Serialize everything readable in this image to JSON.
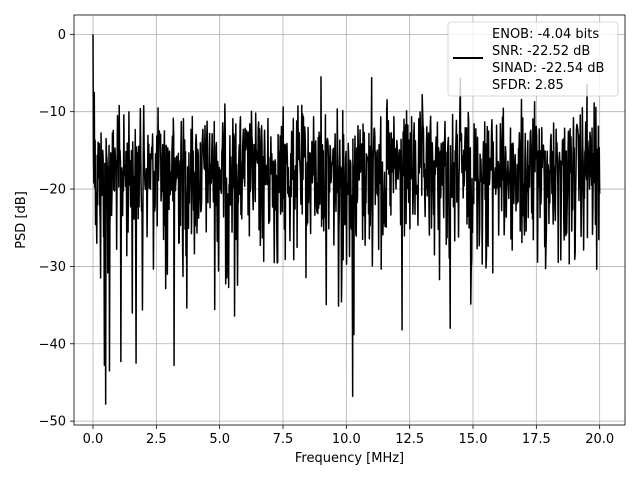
{
  "chart_data": {
    "type": "line",
    "title": "",
    "xlabel": "Frequency [MHz]",
    "ylabel": "PSD [dB]",
    "xlim": [
      -0.75,
      21.0
    ],
    "ylim": [
      -50.5,
      2.5
    ],
    "xticks": [
      0.0,
      2.5,
      5.0,
      7.5,
      10.0,
      12.5,
      15.0,
      17.5,
      20.0
    ],
    "xtick_labels": [
      "0.0",
      "2.5",
      "5.0",
      "7.5",
      "10.0",
      "12.5",
      "15.0",
      "17.5",
      "20.0"
    ],
    "yticks": [
      0,
      -10,
      -20,
      -30,
      -40,
      -50
    ],
    "ytick_labels": [
      "0",
      "−10",
      "−20",
      "−30",
      "−40",
      "−50"
    ],
    "grid": true,
    "legend_placement": "top-right",
    "series": [
      {
        "name": "ENOB: -4.04 bits\nSNR: -22.52 dB\nSINAD: -22.54 dB\nSFDR: 2.85",
        "color": "#000000",
        "x_start": 0.0,
        "x_end": 20.0,
        "points": 1200,
        "noise_mean_db": -18.5,
        "noise_peak_db": -5,
        "peaks": [
          {
            "x": 0.0,
            "y": 0.0
          },
          {
            "x": 0.05,
            "y": -7.5
          },
          {
            "x": 0.15,
            "y": -27.0
          },
          {
            "x": 0.3,
            "y": -31.5
          },
          {
            "x": 0.5,
            "y": -47.8
          },
          {
            "x": 0.45,
            "y": -42.8
          },
          {
            "x": 0.65,
            "y": -43.5
          },
          {
            "x": 1.1,
            "y": -42.3
          },
          {
            "x": 1.7,
            "y": -42.5
          },
          {
            "x": 3.2,
            "y": -42.8
          },
          {
            "x": 10.25,
            "y": -46.8
          },
          {
            "x": 10.3,
            "y": -38.8
          },
          {
            "x": 12.2,
            "y": -38.2
          },
          {
            "x": 14.1,
            "y": -38.0
          },
          {
            "x": 9.0,
            "y": -5.5
          },
          {
            "x": 11.0,
            "y": -5.6
          },
          {
            "x": 14.5,
            "y": -5.7
          },
          {
            "x": 19.5,
            "y": -6.5
          }
        ]
      }
    ]
  },
  "legend": {
    "lines": [
      "ENOB: -4.04 bits",
      "SNR: -22.52 dB",
      "SINAD: -22.54 dB",
      "SFDR: 2.85"
    ],
    "line_color": "#000000"
  },
  "axes": {
    "xlabel": "Frequency [MHz]",
    "ylabel": "PSD [dB]"
  }
}
